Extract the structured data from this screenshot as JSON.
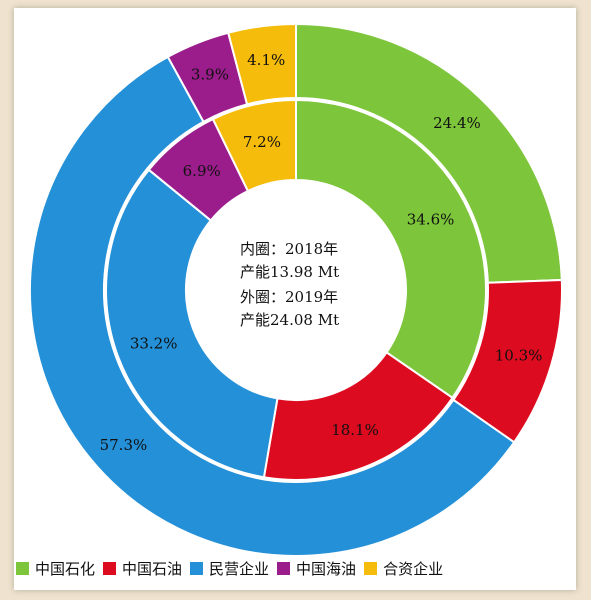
{
  "chart_data": {
    "type": "pie",
    "categories": [
      "中国石化",
      "中国石油",
      "民营企业",
      "中国海油",
      "合资企业"
    ],
    "colors": [
      "#7dc53a",
      "#dd0b1f",
      "#2490d8",
      "#9b1d8c",
      "#f5bc0c"
    ],
    "series": [
      {
        "ring": "inner",
        "values": [
          34.6,
          18.1,
          33.2,
          6.9,
          7.2
        ],
        "labels": [
          "34.6%",
          "18.1%",
          "33.2%",
          "6.9%",
          "7.2%"
        ]
      },
      {
        "ring": "outer",
        "values": [
          24.4,
          10.3,
          57.3,
          3.9,
          4.1
        ],
        "labels": [
          "24.4%",
          "10.3%",
          "57.3%",
          "3.9%",
          "4.1%"
        ]
      }
    ],
    "center_text": [
      "内圈：2018年",
      "产能13.98 Mt",
      "外圈：2019年",
      "产能24.08 Mt"
    ],
    "legend_position": "bottom"
  }
}
